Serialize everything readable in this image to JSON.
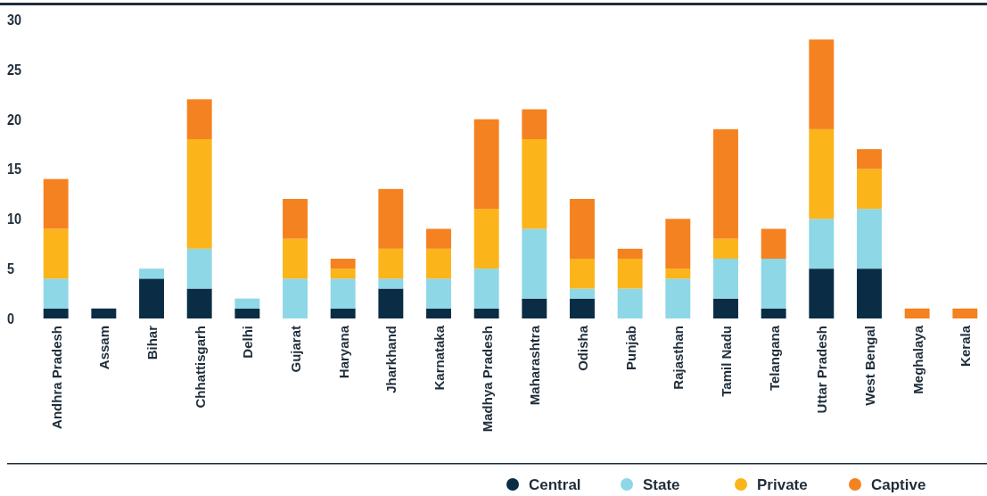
{
  "chart_data": {
    "type": "bar",
    "stacked": true,
    "categories": [
      "Andhra Pradesh",
      "Assam",
      "Bihar",
      "Chhattisgarh",
      "Delhi",
      "Gujarat",
      "Haryana",
      "Jharkhand",
      "Karnataka",
      "Madhya Pradesh",
      "Maharashtra",
      "Odisha",
      "Punjab",
      "Rajasthan",
      "Tamil Nadu",
      "Telangana",
      "Uttar Pradesh",
      "West Bengal",
      "Meghalaya",
      "Kerala"
    ],
    "series": [
      {
        "name": "Central",
        "color": "#0a2d45",
        "values": [
          1,
          1,
          4,
          3,
          1,
          0,
          1,
          3,
          1,
          1,
          2,
          2,
          0,
          0,
          2,
          1,
          5,
          5,
          0,
          0
        ]
      },
      {
        "name": "State",
        "color": "#8dd7e6",
        "values": [
          3,
          0,
          1,
          4,
          1,
          4,
          3,
          1,
          3,
          4,
          7,
          1,
          3,
          4,
          4,
          5,
          5,
          6,
          0,
          0
        ]
      },
      {
        "name": "Private",
        "color": "#fbb41a",
        "values": [
          5,
          0,
          0,
          11,
          0,
          4,
          1,
          3,
          3,
          6,
          9,
          3,
          3,
          1,
          2,
          0,
          9,
          4,
          0,
          0
        ]
      },
      {
        "name": "Captive",
        "color": "#f58220",
        "values": [
          5,
          0,
          0,
          4,
          0,
          4,
          1,
          6,
          2,
          9,
          3,
          6,
          1,
          5,
          11,
          3,
          9,
          2,
          1,
          1
        ]
      }
    ],
    "ylim": [
      0,
      30
    ],
    "yticks": [
      0,
      5,
      10,
      15,
      20,
      25,
      30
    ],
    "legend": "bottom right"
  }
}
